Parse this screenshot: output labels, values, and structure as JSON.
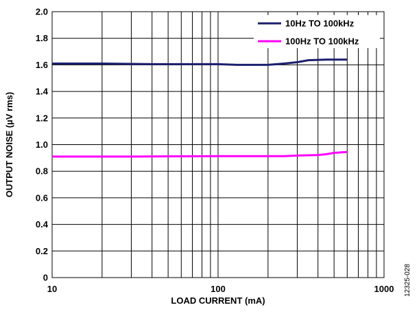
{
  "chart_data": {
    "type": "line",
    "xlabel": "LOAD CURRENT (mA)",
    "ylabel": "OUTPUT NOISE (µV rms)",
    "xscale": "log",
    "xlim": [
      10,
      1000
    ],
    "ylim": [
      0,
      2.0
    ],
    "xticks": [
      "10",
      "100",
      "1000"
    ],
    "yticks": [
      "0",
      "0.2",
      "0.4",
      "0.6",
      "0.8",
      "1.0",
      "1.2",
      "1.4",
      "1.6",
      "1.8",
      "2.0"
    ],
    "grid": true,
    "legend_position": "top-right",
    "figure_id": "12325-028",
    "series": [
      {
        "name": "10Hz TO 100kHz",
        "color": "#1b1f6e",
        "points": [
          [
            10,
            1.61
          ],
          [
            20,
            1.61
          ],
          [
            40,
            1.605
          ],
          [
            60,
            1.605
          ],
          [
            100,
            1.605
          ],
          [
            130,
            1.6
          ],
          [
            200,
            1.6
          ],
          [
            250,
            1.61
          ],
          [
            300,
            1.62
          ],
          [
            350,
            1.635
          ],
          [
            450,
            1.64
          ],
          [
            600,
            1.64
          ]
        ]
      },
      {
        "name": "100Hz TO 100kHz",
        "color": "#ff00ff",
        "points": [
          [
            10,
            0.91
          ],
          [
            30,
            0.91
          ],
          [
            60,
            0.912
          ],
          [
            100,
            0.913
          ],
          [
            200,
            0.913
          ],
          [
            250,
            0.913
          ],
          [
            300,
            0.918
          ],
          [
            400,
            0.922
          ],
          [
            450,
            0.928
          ],
          [
            500,
            0.938
          ],
          [
            600,
            0.945
          ]
        ]
      }
    ]
  }
}
